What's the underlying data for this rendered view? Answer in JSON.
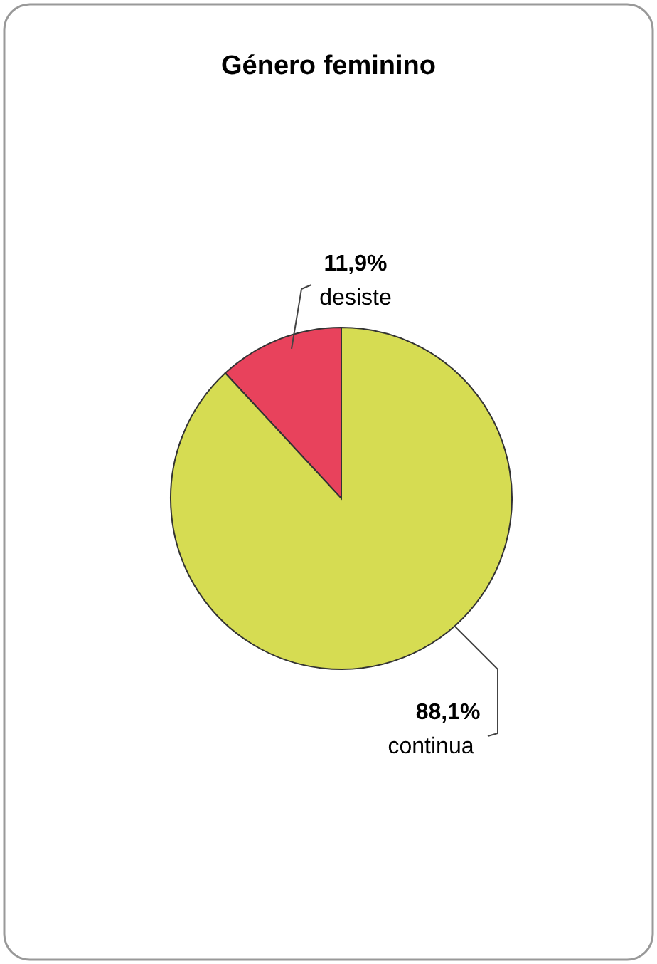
{
  "chart_data": {
    "type": "pie",
    "title": "Género feminino",
    "categories": [
      "desiste",
      "continua"
    ],
    "values": [
      11.9,
      88.1
    ],
    "value_labels": [
      "11,9%",
      "88,1%"
    ],
    "colors": [
      "#e8425c",
      "#d6dc52"
    ]
  }
}
